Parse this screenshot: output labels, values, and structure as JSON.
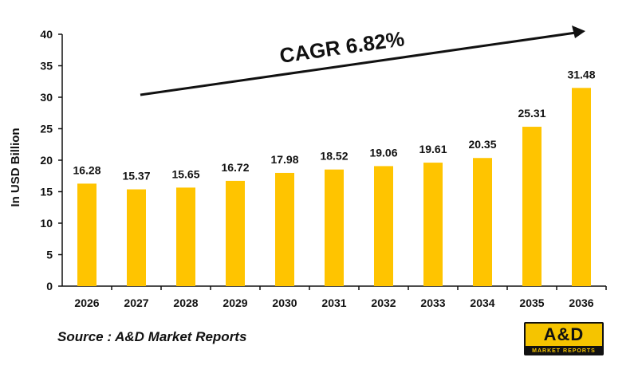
{
  "chart_data": {
    "type": "bar",
    "categories": [
      "2026",
      "2027",
      "2028",
      "2029",
      "2030",
      "2031",
      "2032",
      "2033",
      "2034",
      "2035",
      "2036"
    ],
    "values": [
      16.28,
      15.37,
      15.65,
      16.72,
      17.98,
      18.52,
      19.06,
      19.61,
      20.35,
      25.31,
      31.48
    ],
    "value_labels": [
      "16.28",
      "15.37",
      "15.65",
      "16.72",
      "17.98",
      "18.52",
      "19.06",
      "19.61",
      "20.35",
      "25.31",
      "31.48"
    ],
    "ylabel": "In USD Billion",
    "ylim": [
      0,
      40
    ],
    "yticks": [
      "0",
      "5",
      "10",
      "15",
      "20",
      "25",
      "30",
      "35",
      "40"
    ],
    "bar_color": "#FFC400",
    "grid": false,
    "annotation": "CAGR 6.82%"
  },
  "source": "Source : A&D Market Reports",
  "logo": {
    "main": "A&D",
    "sub": "MARKET REPORTS"
  }
}
